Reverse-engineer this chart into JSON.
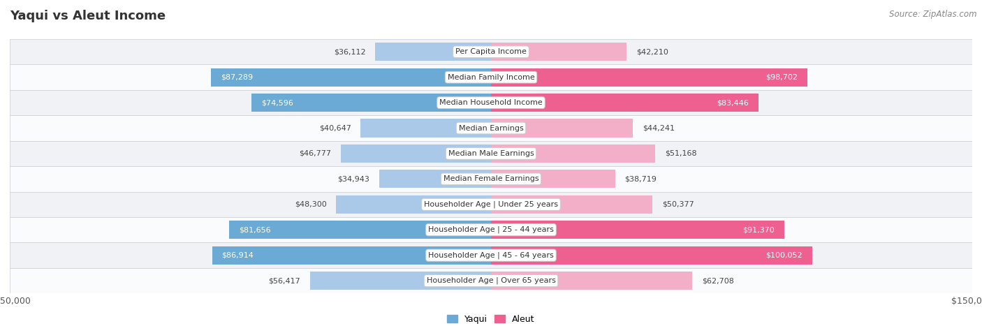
{
  "title": "Yaqui vs Aleut Income",
  "source": "Source: ZipAtlas.com",
  "categories": [
    "Per Capita Income",
    "Median Family Income",
    "Median Household Income",
    "Median Earnings",
    "Median Male Earnings",
    "Median Female Earnings",
    "Householder Age | Under 25 years",
    "Householder Age | 25 - 44 years",
    "Householder Age | 45 - 64 years",
    "Householder Age | Over 65 years"
  ],
  "yaqui_values": [
    36112,
    87289,
    74596,
    40647,
    46777,
    34943,
    48300,
    81656,
    86914,
    56417
  ],
  "aleut_values": [
    42210,
    98702,
    83446,
    44241,
    51168,
    38719,
    50377,
    91370,
    100052,
    62708
  ],
  "yaqui_color_light": "#aac8e8",
  "yaqui_color_dark": "#6aaad4",
  "aleut_color_light": "#f4afc8",
  "aleut_color_dark": "#ee6090",
  "bar_height": 0.72,
  "xlim": 150000,
  "row_bg_odd": "#f0f2f5",
  "row_bg_even": "#fafbfc",
  "row_border": "#d0d4da",
  "title_fontsize": 13,
  "label_fontsize": 8,
  "value_fontsize": 8,
  "axis_fontsize": 9,
  "source_fontsize": 8.5,
  "yaqui_dark_threshold": 60000,
  "aleut_dark_threshold": 80000
}
